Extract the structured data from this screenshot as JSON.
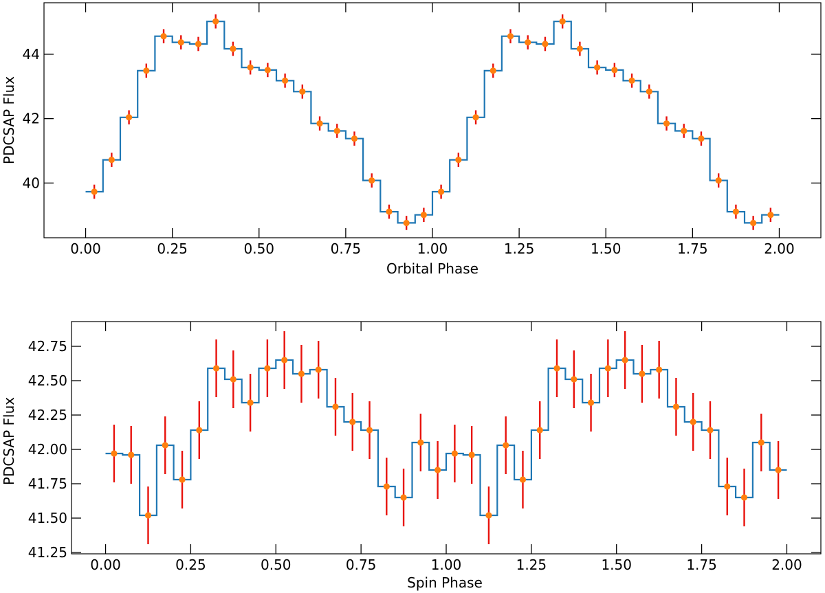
{
  "colors": {
    "step": "#1f77b4",
    "marker": "#ff7f0e",
    "errorbar": "#e8120c",
    "axis": "#000000"
  },
  "chart_data": [
    {
      "type": "line",
      "style": "step-with-errorbars",
      "xlabel": "Orbital Phase",
      "ylabel": "PDCSAP Flux",
      "xlim": [
        -0.12,
        2.12
      ],
      "ylim": [
        38.3,
        45.6
      ],
      "xticks": [
        0.0,
        0.25,
        0.5,
        0.75,
        1.0,
        1.25,
        1.5,
        1.75,
        2.0
      ],
      "xtick_labels": [
        "0.00",
        "0.25",
        "0.50",
        "0.75",
        "1.00",
        "1.25",
        "1.50",
        "1.75",
        "2.00"
      ],
      "yticks": [
        40,
        42,
        44
      ],
      "ytick_labels": [
        "40",
        "42",
        "44"
      ],
      "grid": false,
      "x": [
        0.025,
        0.075,
        0.125,
        0.175,
        0.225,
        0.275,
        0.325,
        0.375,
        0.425,
        0.475,
        0.525,
        0.575,
        0.625,
        0.675,
        0.725,
        0.775,
        0.825,
        0.875,
        0.925,
        0.975,
        1.025,
        1.075,
        1.125,
        1.175,
        1.225,
        1.275,
        1.325,
        1.375,
        1.425,
        1.475,
        1.525,
        1.575,
        1.625,
        1.675,
        1.725,
        1.775,
        1.825,
        1.875,
        1.925,
        1.975
      ],
      "y": [
        39.73,
        40.72,
        42.04,
        43.49,
        44.56,
        44.37,
        44.32,
        45.02,
        44.17,
        43.59,
        43.51,
        43.18,
        42.84,
        41.85,
        41.62,
        41.38,
        40.08,
        39.11,
        38.76,
        39.01,
        39.73,
        40.72,
        42.04,
        43.49,
        44.56,
        44.37,
        44.32,
        45.02,
        44.17,
        43.59,
        43.51,
        43.18,
        42.84,
        41.85,
        41.62,
        41.38,
        40.08,
        39.11,
        38.76,
        39.01
      ],
      "yerr": [
        0.22,
        0.22,
        0.22,
        0.22,
        0.22,
        0.22,
        0.22,
        0.22,
        0.22,
        0.22,
        0.22,
        0.22,
        0.22,
        0.22,
        0.22,
        0.22,
        0.22,
        0.22,
        0.22,
        0.22,
        0.22,
        0.22,
        0.22,
        0.22,
        0.22,
        0.22,
        0.22,
        0.22,
        0.22,
        0.22,
        0.22,
        0.22,
        0.22,
        0.22,
        0.22,
        0.22,
        0.22,
        0.22,
        0.22,
        0.22
      ]
    },
    {
      "type": "line",
      "style": "step-with-errorbars",
      "xlabel": "Spin Phase",
      "ylabel": "PDCSAP Flux",
      "xlim": [
        -0.1,
        2.1
      ],
      "ylim": [
        41.24,
        42.93
      ],
      "xticks": [
        0.0,
        0.25,
        0.5,
        0.75,
        1.0,
        1.25,
        1.5,
        1.75,
        2.0
      ],
      "xtick_labels": [
        "0.00",
        "0.25",
        "0.50",
        "0.75",
        "1.00",
        "1.25",
        "1.50",
        "1.75",
        "2.00"
      ],
      "yticks": [
        41.25,
        41.5,
        41.75,
        42.0,
        42.25,
        42.5,
        42.75
      ],
      "ytick_labels": [
        "41.25",
        "41.50",
        "41.75",
        "42.00",
        "42.25",
        "42.50",
        "42.75"
      ],
      "grid": false,
      "x": [
        0.025,
        0.075,
        0.125,
        0.175,
        0.225,
        0.275,
        0.325,
        0.375,
        0.425,
        0.475,
        0.525,
        0.575,
        0.625,
        0.675,
        0.725,
        0.775,
        0.825,
        0.875,
        0.925,
        0.975,
        1.025,
        1.075,
        1.125,
        1.175,
        1.225,
        1.275,
        1.325,
        1.375,
        1.425,
        1.475,
        1.525,
        1.575,
        1.625,
        1.675,
        1.725,
        1.775,
        1.825,
        1.875,
        1.925,
        1.975
      ],
      "y": [
        41.97,
        41.96,
        41.52,
        42.03,
        41.78,
        42.14,
        42.59,
        42.51,
        42.34,
        42.59,
        42.65,
        42.55,
        42.58,
        42.31,
        42.2,
        42.14,
        41.73,
        41.65,
        42.05,
        41.85,
        41.97,
        41.96,
        41.52,
        42.03,
        41.78,
        42.14,
        42.59,
        42.51,
        42.34,
        42.59,
        42.65,
        42.55,
        42.58,
        42.31,
        42.2,
        42.14,
        41.73,
        41.65,
        42.05,
        41.85
      ],
      "yerr": [
        0.21,
        0.21,
        0.21,
        0.21,
        0.21,
        0.21,
        0.21,
        0.21,
        0.21,
        0.21,
        0.21,
        0.21,
        0.21,
        0.21,
        0.21,
        0.21,
        0.21,
        0.21,
        0.21,
        0.21,
        0.21,
        0.21,
        0.21,
        0.21,
        0.21,
        0.21,
        0.21,
        0.21,
        0.21,
        0.21,
        0.21,
        0.21,
        0.21,
        0.21,
        0.21,
        0.21,
        0.21,
        0.21,
        0.21,
        0.21
      ]
    }
  ]
}
